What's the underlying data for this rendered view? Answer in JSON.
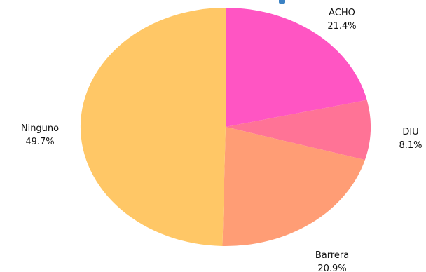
{
  "chart_data": {
    "type": "pie",
    "title": "",
    "slices": [
      {
        "label": "ACHO",
        "value": 21.4,
        "value_label": "21.4%",
        "color": "#ff55c3"
      },
      {
        "label": "DIU",
        "value": 8.1,
        "value_label": "8.1%",
        "color": "#ff7396"
      },
      {
        "label": "Barrera",
        "value": 20.9,
        "value_label": "20.9%",
        "color": "#ff9d75"
      },
      {
        "label": "Ninguno",
        "value": 49.7,
        "value_label": "49.7%",
        "color": "#ffc766"
      }
    ]
  }
}
